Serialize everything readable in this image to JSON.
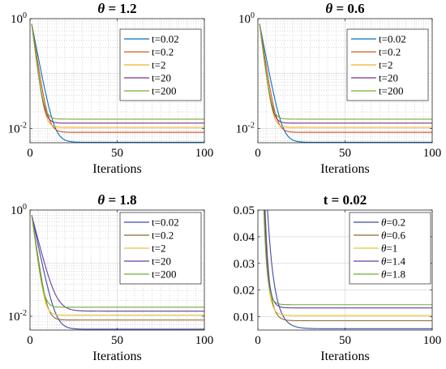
{
  "chart_data": [
    {
      "type": "line",
      "title": "θ = 1.2",
      "title_prefix": "θ",
      "title_value": " = 1.2",
      "xlabel": "Iterations",
      "ylabel": "",
      "xlim": [
        0,
        100
      ],
      "ylim": [
        0.0055,
        1
      ],
      "yscale": "log",
      "grid": true,
      "legend_position": "top-right",
      "xticks": [
        0,
        50,
        100
      ],
      "yticks": [
        {
          "value": 1,
          "base": "10",
          "exp": "0"
        },
        {
          "value": 0.01,
          "base": "10",
          "exp": "-2"
        }
      ],
      "series": [
        {
          "name": "t=0.02",
          "color": "#0072BD",
          "start": 0.8,
          "final": 0.0056,
          "rate": 0.38
        },
        {
          "name": "t=0.2",
          "color": "#D95319",
          "start": 0.8,
          "final": 0.0085,
          "rate": 0.48
        },
        {
          "name": "t=2",
          "color": "#EDB120",
          "start": 0.8,
          "final": 0.0105,
          "rate": 0.58
        },
        {
          "name": "t=20",
          "color": "#7E2F8E",
          "start": 0.8,
          "final": 0.0125,
          "rate": 0.58
        },
        {
          "name": "t=200",
          "color": "#77AC30",
          "start": 0.8,
          "final": 0.0148,
          "rate": 0.58
        }
      ]
    },
    {
      "type": "line",
      "title": "θ = 0.6",
      "title_prefix": "θ",
      "title_value": " = 0.6",
      "xlabel": "Iterations",
      "ylabel": "",
      "xlim": [
        0,
        100
      ],
      "ylim": [
        0.0055,
        1
      ],
      "yscale": "log",
      "grid": true,
      "legend_position": "top-right",
      "xticks": [
        0,
        50,
        100
      ],
      "yticks": [
        {
          "value": 1,
          "base": "10",
          "exp": "0"
        },
        {
          "value": 0.01,
          "base": "10",
          "exp": "-2"
        }
      ],
      "series": [
        {
          "name": "t=0.02",
          "color": "#0072BD",
          "start": 0.8,
          "final": 0.0056,
          "rate": 0.38
        },
        {
          "name": "t=0.2",
          "color": "#D95319",
          "start": 0.8,
          "final": 0.0085,
          "rate": 0.48
        },
        {
          "name": "t=2",
          "color": "#EDB120",
          "start": 0.8,
          "final": 0.0105,
          "rate": 0.58
        },
        {
          "name": "t=20",
          "color": "#7E2F8E",
          "start": 0.8,
          "final": 0.0125,
          "rate": 0.58
        },
        {
          "name": "t=200",
          "color": "#77AC30",
          "start": 0.8,
          "final": 0.0148,
          "rate": 0.58
        }
      ]
    },
    {
      "type": "line",
      "title": "θ = 1.8",
      "title_prefix": "θ",
      "title_value": " = 1.8",
      "xlabel": "Iterations",
      "ylabel": "",
      "xlim": [
        0,
        100
      ],
      "ylim": [
        0.0055,
        1
      ],
      "yscale": "log",
      "grid": true,
      "legend_position": "top-right",
      "xticks": [
        0,
        50,
        100
      ],
      "yticks": [
        {
          "value": 1,
          "base": "10",
          "exp": "0"
        },
        {
          "value": 0.01,
          "base": "10",
          "exp": "-2"
        }
      ],
      "series": [
        {
          "name": "t=0.02",
          "color": "#3D4AA8",
          "start": 0.8,
          "final": 0.0057,
          "rate": 0.36
        },
        {
          "name": "t=0.2",
          "color": "#8B6A2E",
          "start": 0.8,
          "final": 0.0085,
          "rate": 0.52
        },
        {
          "name": "t=2",
          "color": "#E3C53A",
          "start": 0.8,
          "final": 0.0105,
          "rate": 0.58
        },
        {
          "name": "t=20",
          "color": "#6A3AA6",
          "start": 0.8,
          "final": 0.0125,
          "rate": 0.3
        },
        {
          "name": "t=200",
          "color": "#6AAF35",
          "start": 0.8,
          "final": 0.0148,
          "rate": 0.58
        }
      ]
    },
    {
      "type": "line",
      "title": "t = 0.02",
      "xlabel": "Iterations",
      "ylabel": "",
      "xlim": [
        0,
        100
      ],
      "ylim": [
        0.005,
        0.05
      ],
      "yscale": "linear",
      "grid": true,
      "legend_position": "top-right",
      "xticks": [
        0,
        50,
        100
      ],
      "yticks": [
        {
          "value": 0.01,
          "label": "0.01"
        },
        {
          "value": 0.02,
          "label": "0.02"
        },
        {
          "value": 0.03,
          "label": "0.03"
        },
        {
          "value": 0.04,
          "label": "0.04"
        },
        {
          "value": 0.05,
          "label": "0.05"
        }
      ],
      "series": [
        {
          "name": "θ=0.2",
          "prefix": "θ",
          "suffix": "=0.2",
          "color": "#3D4AA8",
          "final": 0.0055,
          "x0": 5.5,
          "k": 0.25
        },
        {
          "name": "θ=0.6",
          "prefix": "θ",
          "suffix": "=0.6",
          "color": "#8B6A2E",
          "final": 0.0085,
          "x0": 4.0,
          "k": 0.42
        },
        {
          "name": "θ=1",
          "prefix": "θ",
          "suffix": "=1",
          "color": "#E3C53A",
          "final": 0.0105,
          "x0": 3.5,
          "k": 0.5
        },
        {
          "name": "θ=1.4",
          "prefix": "θ",
          "suffix": "=1.4",
          "color": "#6A3AA6",
          "final": 0.0133,
          "x0": 3.5,
          "k": 0.5
        },
        {
          "name": "θ=1.8",
          "prefix": "θ",
          "suffix": "=1.8",
          "color": "#6AAF35",
          "final": 0.0145,
          "x0": 3.0,
          "k": 0.55
        }
      ]
    }
  ]
}
